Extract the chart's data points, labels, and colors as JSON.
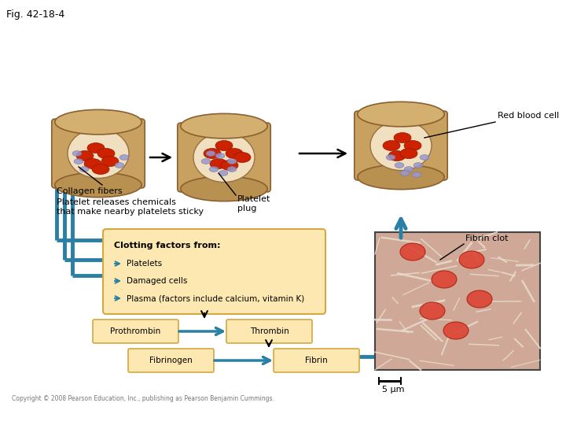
{
  "title": "Fig. 42-18-4",
  "bg_color": "#ffffff",
  "teal": "#2a7fa5",
  "box_fill": "#fce8b0",
  "box_edge": "#d4a843",
  "lfs": 8,
  "title_fontsize": 9,
  "labels": {
    "collagen": "Collagen fibers",
    "platelet_rel": "Platelet releases chemicals\nthat make nearby platelets sticky",
    "platelet_plug": "Platelet\nplug",
    "red_blood_cell": "Red blood cell",
    "fibrin_clot": "Fibrin clot",
    "clotting_title": "Clotting factors from:",
    "clotting_items": [
      "Platelets",
      "Damaged cells",
      "Plasma (factors include calcium, vitamin K)"
    ],
    "prothrombin": "Prothrombin",
    "thrombin": "Thrombin",
    "fibrinogen": "Fibrinogen",
    "fibrin": "Fibrin",
    "scale": "5 μm",
    "copyright": "Copyright © 2008 Pearson Education, Inc., publishing as Pearson Benjamin Cummings."
  }
}
